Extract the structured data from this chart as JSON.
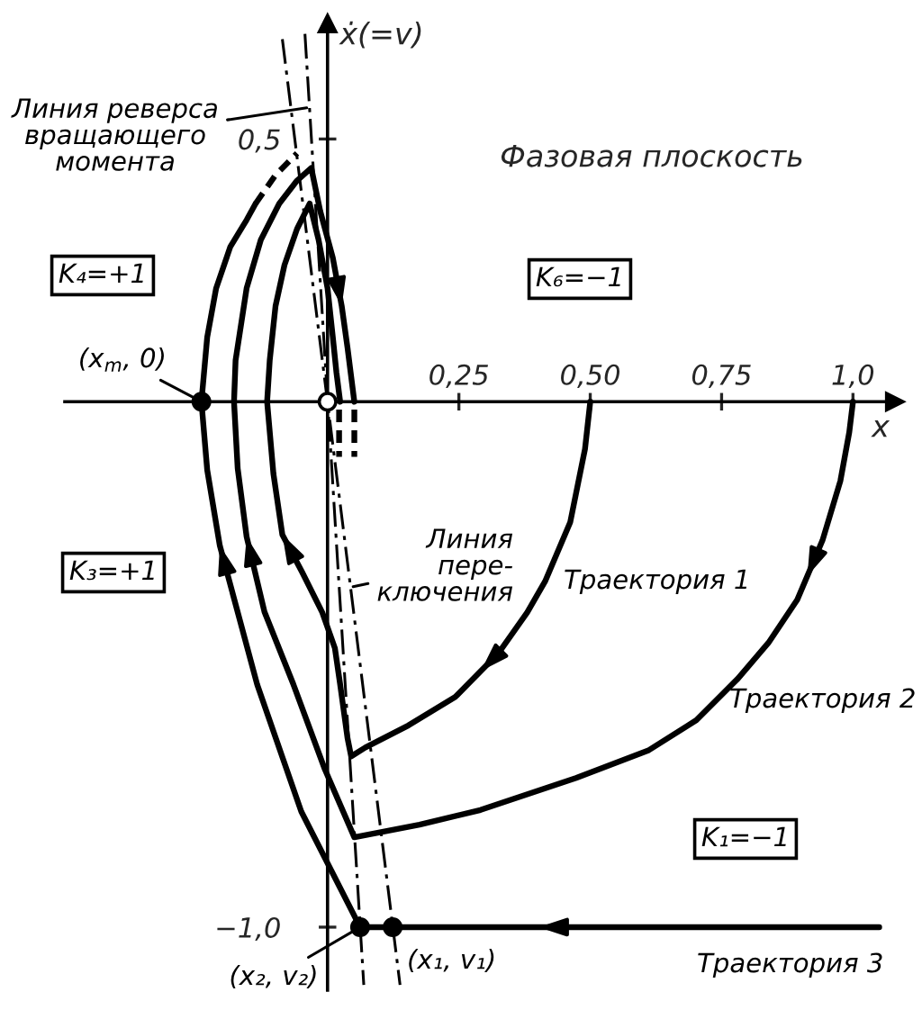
{
  "chart_data": {
    "type": "line",
    "title": "Фазовая плоскость",
    "xlabel": "x",
    "ylabel": "ẋ(=v)",
    "xlim": [
      -0.5,
      1.08
    ],
    "ylim": [
      -1.12,
      0.72
    ],
    "xticks": [
      {
        "value": 0.25,
        "label": "0,25"
      },
      {
        "value": 0.5,
        "label": "0,50"
      },
      {
        "value": 0.75,
        "label": "0,75"
      },
      {
        "value": 1.0,
        "label": "1,0"
      }
    ],
    "yticks": [
      {
        "value": 0.5,
        "label": "0,5"
      },
      {
        "value": -1.0,
        "label": "−1,0"
      }
    ],
    "series": [
      {
        "name": "Траектория 1",
        "color": "#000000",
        "x": [
          0.5,
          0.49,
          0.462,
          0.414,
          0.38,
          0.325,
          0.243,
          0.154,
          0.072,
          0.045,
          0.038,
          0.024,
          0.014,
          -0.01,
          -0.048,
          -0.086,
          -0.103,
          -0.115,
          -0.11,
          -0.099,
          -0.082,
          -0.058,
          -0.034,
          -0.017,
          0.0,
          0.01,
          0.017,
          0.024
        ],
        "values": [
          0,
          -0.09,
          -0.229,
          -0.342,
          -0.401,
          -0.479,
          -0.562,
          -0.616,
          -0.658,
          -0.675,
          -0.64,
          -0.538,
          -0.469,
          -0.401,
          -0.325,
          -0.253,
          -0.137,
          0,
          0.079,
          0.182,
          0.26,
          0.329,
          0.377,
          0.308,
          0.216,
          0.123,
          0.055,
          0
        ]
      },
      {
        "color": "#000000",
        "line_style": "dashed",
        "x": [
          0.022,
          0.022
        ],
        "values": [
          -0.015,
          -0.105
        ]
      },
      {
        "name": "Траектория 2",
        "color": "#000000",
        "x": [
          1.0,
          0.993,
          0.976,
          0.942,
          0.894,
          0.839,
          0.781,
          0.702,
          0.61,
          0.473,
          0.291,
          0.175,
          0.051,
          -0.005,
          -0.065,
          -0.12,
          -0.154,
          -0.171,
          -0.178,
          -0.175,
          -0.154,
          -0.127,
          -0.092,
          -0.058,
          -0.031,
          -0.014,
          0.01,
          0.027,
          0.038,
          0.051
        ],
        "values": [
          0,
          -0.058,
          -0.151,
          -0.264,
          -0.377,
          -0.459,
          -0.527,
          -0.606,
          -0.664,
          -0.716,
          -0.777,
          -0.805,
          -0.829,
          -0.7,
          -0.538,
          -0.4,
          -0.257,
          -0.127,
          0,
          0.079,
          0.216,
          0.308,
          0.377,
          0.421,
          0.445,
          0.363,
          0.274,
          0.182,
          0.103,
          0
        ]
      },
      {
        "color": "#000000",
        "line_style": "dashed",
        "x": [
          0.051,
          0.051
        ],
        "values": [
          -0.015,
          -0.105
        ]
      },
      {
        "name": "Траектория 3",
        "color": "#000000",
        "x": [
          1.05,
          0.124,
          0.062,
          -0.05,
          -0.134,
          -0.205,
          -0.229,
          -0.24,
          -0.229,
          -0.212,
          -0.185,
          -0.154,
          -0.137
        ],
        "values": [
          -1.0,
          -1.0,
          -1.0,
          -0.78,
          -0.538,
          -0.274,
          -0.13,
          0,
          0.123,
          0.216,
          0.295,
          0.346,
          0.377
        ]
      },
      {
        "color": "#000000",
        "line_style": "dashed",
        "x": [
          -0.137,
          -0.1,
          -0.058
        ],
        "values": [
          0.377,
          0.43,
          0.473
        ]
      },
      {
        "color": "#000000",
        "line_style": "dashdot",
        "x": [
          -0.086,
          0.138
        ],
        "values": [
          0.69,
          -1.11
        ]
      },
      {
        "color": "#000000",
        "line_style": "dashdot",
        "x": [
          -0.043,
          0.069
        ],
        "values": [
          0.7,
          -1.11
        ]
      },
      {
        "type": "scatter",
        "marker": "circle",
        "color": "#000000",
        "x": [
          -0.24,
          0.062,
          0.124
        ],
        "values": [
          0,
          -1.0,
          -1.0
        ]
      },
      {
        "type": "scatter",
        "marker": "circle",
        "color": "#ffffff",
        "x": [
          0
        ],
        "values": [
          0
        ]
      }
    ],
    "annotations": [
      {
        "text": "Линия реверса\nвращающего\nмомента",
        "x": -0.035,
        "y": 0.56
      },
      {
        "text": "Линия\nпере-\nключения",
        "x": 0.044,
        "y": -0.353
      },
      {
        "text": "(x$_{m}$, 0)",
        "x": -0.24,
        "y": 0
      },
      {
        "text": "(x₁, v₁)",
        "x": 0.124,
        "y": -1.0
      },
      {
        "text": "(x₂, v₂)",
        "x": 0.062,
        "y": -1.0
      },
      "K₄=+1",
      "K₆=−1",
      "K₃=+1",
      "K₁=−1"
    ]
  }
}
